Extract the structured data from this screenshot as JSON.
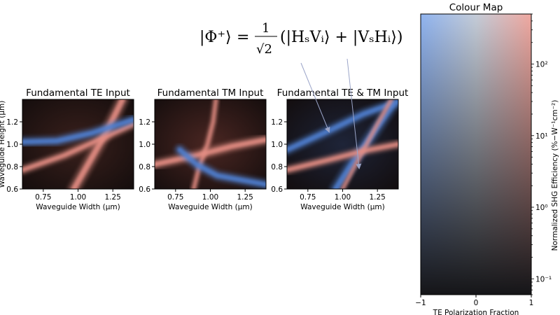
{
  "equation": {
    "lhs": "|Φ⁺⟩",
    "eq": "=",
    "num": "1",
    "den": "√2",
    "rhs": "(|HₛVᵢ⟩ + |VₛHᵢ⟩)"
  },
  "chart_data": [
    {
      "type": "heatmap",
      "title": "Fundamental TE Input",
      "xlabel": "Waveguide Width (μm)",
      "ylabel": "Waveguide Height (μm)",
      "xlim": [
        0.6,
        1.4
      ],
      "ylim": [
        0.6,
        1.4
      ],
      "xticks": [
        0.75,
        1.0,
        1.25
      ],
      "xticklabels": [
        "0.75",
        "1.00",
        "1.25"
      ],
      "yticks": [
        0.6,
        0.8,
        1.0,
        1.2
      ],
      "yticklabels": [
        "0.6",
        "0.8",
        "1.0",
        "1.2"
      ],
      "base_color": "#3a201c",
      "bands": [
        {
          "color": "#e58e84",
          "points": [
            [
              0.97,
              0.6
            ],
            [
              1.09,
              0.86
            ],
            [
              1.2,
              1.1
            ],
            [
              1.32,
              1.4
            ]
          ],
          "width": 0.045
        },
        {
          "color": "#e58e84",
          "points": [
            [
              0.6,
              0.77
            ],
            [
              0.9,
              0.9
            ],
            [
              1.15,
              1.04
            ],
            [
              1.4,
              1.18
            ]
          ],
          "width": 0.035
        },
        {
          "color": "#4f7fd0",
          "points": [
            [
              0.6,
              1.02
            ],
            [
              0.85,
              1.03
            ],
            [
              1.1,
              1.1
            ],
            [
              1.4,
              1.22
            ]
          ],
          "width": 0.04
        }
      ]
    },
    {
      "type": "heatmap",
      "title": "Fundamental TM Input",
      "xlabel": "Waveguide Width (μm)",
      "ylabel": "",
      "xlim": [
        0.6,
        1.4
      ],
      "ylim": [
        0.6,
        1.4
      ],
      "xticks": [
        0.75,
        1.0,
        1.25
      ],
      "xticklabels": [
        "0.75",
        "1.00",
        "1.25"
      ],
      "yticks": [
        0.6,
        0.8,
        1.0,
        1.2
      ],
      "yticklabels": [
        "0.6",
        "0.8",
        "1.0",
        "1.2"
      ],
      "base_color": "#4a2622",
      "bands": [
        {
          "color": "#e58e84",
          "points": [
            [
              0.6,
              0.82
            ],
            [
              0.9,
              0.9
            ],
            [
              1.15,
              0.98
            ],
            [
              1.4,
              1.04
            ]
          ],
          "width": 0.04
        },
        {
          "color": "#e58e84",
          "points": [
            [
              1.04,
              1.4
            ],
            [
              1.02,
              1.2
            ],
            [
              0.98,
              1.0
            ],
            [
              0.92,
              0.8
            ],
            [
              0.88,
              0.6
            ]
          ],
          "width": 0.025
        },
        {
          "color": "#4f7fd0",
          "points": [
            [
              0.78,
              0.95
            ],
            [
              0.9,
              0.82
            ],
            [
              1.05,
              0.72
            ],
            [
              1.4,
              0.64
            ]
          ],
          "width": 0.04
        }
      ]
    },
    {
      "type": "heatmap",
      "title": "Fundamental TE & TM Input",
      "xlabel": "Waveguide Width (μm)",
      "ylabel": "",
      "xlim": [
        0.6,
        1.4
      ],
      "ylim": [
        0.6,
        1.4
      ],
      "xticks": [
        0.75,
        1.0,
        1.25
      ],
      "xticklabels": [
        "0.75",
        "1.00",
        "1.25"
      ],
      "yticks": [
        0.6,
        0.8,
        1.0,
        1.2
      ],
      "yticklabels": [
        "0.6",
        "0.8",
        "1.0",
        "1.2"
      ],
      "base_color": "#1e2438",
      "bands": [
        {
          "color": "#4f7fd0",
          "points": [
            [
              0.6,
              0.95
            ],
            [
              0.9,
              1.12
            ],
            [
              1.15,
              1.27
            ],
            [
              1.4,
              1.38
            ]
          ],
          "width": 0.04
        },
        {
          "color": "#4f7fd0",
          "points": [
            [
              0.95,
              0.6
            ],
            [
              1.08,
              0.85
            ],
            [
              1.22,
              1.1
            ],
            [
              1.36,
              1.35
            ]
          ],
          "width": 0.045
        },
        {
          "color": "#e58e84",
          "points": [
            [
              0.6,
              0.77
            ],
            [
              0.9,
              0.86
            ],
            [
              1.15,
              0.94
            ],
            [
              1.4,
              1.0
            ]
          ],
          "width": 0.035
        },
        {
          "color": "#e58e84",
          "points": [
            [
              1.0,
              0.6
            ],
            [
              1.12,
              0.88
            ],
            [
              1.25,
              1.18
            ],
            [
              1.35,
              1.4
            ]
          ],
          "width": 0.02
        }
      ]
    },
    {
      "type": "heatmap",
      "title": "Colour Map",
      "xlabel": "TE Polarization Fraction",
      "ylabel": "Normalized SHG Efficiency (%−W⁻¹cm⁻²)",
      "xlim": [
        -1,
        1
      ],
      "xticks": [
        -1,
        0,
        1
      ],
      "xticklabels": [
        "−1",
        "0",
        "1"
      ],
      "ylim": [
        0.06,
        500
      ],
      "yscale": "log",
      "yticks": [
        0.1,
        1,
        10,
        100
      ],
      "yticklabels": [
        "10⁻¹",
        "10⁰",
        "10¹",
        "10²"
      ],
      "colors": {
        "te_high": "#90b4f0",
        "tm_high": "#f0a8a0",
        "low": "#151518",
        "mid_high": "#c4ccd8"
      }
    }
  ]
}
